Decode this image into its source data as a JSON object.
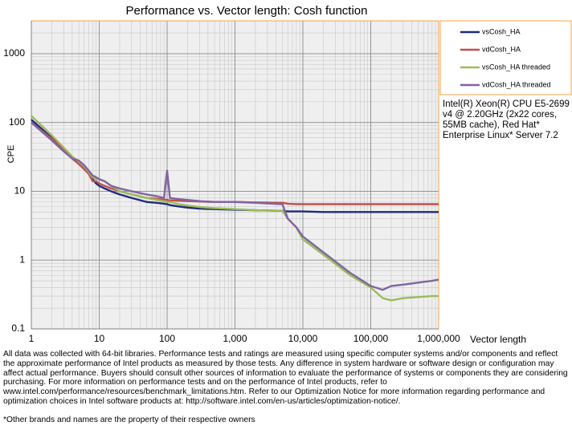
{
  "chart_data": {
    "type": "line",
    "title": "Performance vs. Vector length: Cosh function",
    "x_label": "Vector length",
    "y_label": "CPE",
    "annotation": "Intel(R) Xeon(R) CPU E5-2699 v4 @ 2.20GHz (2x22 cores, 55MB cache), Red Hat* Enterprise Linux* Server 7.2",
    "x_log": true,
    "y_log": true,
    "grid": true,
    "minor_grid": true,
    "legend": "right",
    "xlim": [
      1,
      1000000
    ],
    "ylim": [
      0.1,
      3000
    ],
    "xticks": [
      1,
      10,
      100,
      {
        "value": 1000,
        "label": "1,000"
      },
      {
        "value": 10000,
        "label": "10,000"
      },
      {
        "value": 100000,
        "label": "100,000"
      },
      {
        "value": 1000000,
        "label": "1,000,000"
      }
    ],
    "yticks": [
      0.1,
      1,
      10,
      100,
      1000
    ],
    "x": [
      1,
      2,
      3,
      4,
      5,
      6,
      7,
      8,
      9,
      10,
      12,
      15,
      20,
      30,
      50,
      70,
      90,
      100,
      110,
      150,
      200,
      300,
      500,
      1000,
      2000,
      5000,
      6000,
      8000,
      10000,
      20000,
      50000,
      100000,
      150000,
      200000,
      300000,
      500000,
      800000,
      1000000
    ],
    "series": [
      {
        "name": "vsCosh_HA",
        "color": "#1f2a7a",
        "values": [
          110,
          60,
          40,
          30,
          25,
          21,
          18,
          15,
          13,
          12,
          11,
          10,
          9,
          8,
          7,
          6.8,
          6.6,
          6.5,
          6.3,
          6,
          5.8,
          5.6,
          5.5,
          5.4,
          5.3,
          5.2,
          5.1,
          5.1,
          5.1,
          5,
          5,
          5,
          5,
          5,
          5,
          5,
          5,
          5
        ]
      },
      {
        "name": "vdCosh_HA",
        "color": "#c0504d",
        "values": [
          100,
          58,
          40,
          30,
          25,
          21,
          18,
          14,
          14,
          13,
          12,
          11,
          10,
          9,
          8,
          7.8,
          7.6,
          7.5,
          7.4,
          7.3,
          7.2,
          7.1,
          7,
          7,
          6.9,
          6.8,
          6.6,
          6.5,
          6.5,
          6.5,
          6.5,
          6.5,
          6.5,
          6.5,
          6.5,
          6.5,
          6.5,
          6.5
        ]
      },
      {
        "name": "vsCosh_HA threaded",
        "color": "#9bbb59",
        "values": [
          125,
          65,
          43,
          32,
          27,
          23,
          19,
          16,
          15,
          15,
          14,
          12,
          10,
          9,
          8,
          7.5,
          7.2,
          7,
          7,
          6.5,
          6.2,
          5.9,
          5.7,
          5.5,
          5.3,
          5.2,
          4,
          3,
          2,
          1.2,
          0.6,
          0.4,
          0.28,
          0.26,
          0.28,
          0.29,
          0.3,
          0.3
        ]
      },
      {
        "name": "vdCosh_HA threaded",
        "color": "#8064a2",
        "values": [
          100,
          55,
          38,
          30,
          28,
          24,
          20,
          17,
          16,
          15,
          14,
          12,
          11,
          10,
          9,
          8.5,
          8,
          20,
          8,
          7.7,
          7.5,
          7.2,
          7,
          7,
          6.8,
          6.5,
          4,
          3,
          2.2,
          1.3,
          0.65,
          0.42,
          0.37,
          0.42,
          0.44,
          0.47,
          0.5,
          0.52
        ]
      }
    ]
  },
  "footnote": "All data was collected with 64-bit libraries. Performance tests and ratings are measured using specific computer systems and/or components and reflect the approximate performance of Intel products as measured by those tests. Any difference in system hardware or software design or configuration may affect actual performance. Buyers should consult other sources of information to evaluate the performance of systems or components they are considering purchasing. For more information on performance tests and on the performance of Intel products, refer to www.intel.com/performance/resources/benchmark_limitations.htm. Refer to our Optimization Notice for more information regarding performance and optimization choices in Intel software products at: http://software.intel.com/en-us/articles/optimization-notice/.",
  "trademark_note": "*Other brands and names are the property of their respective owners"
}
